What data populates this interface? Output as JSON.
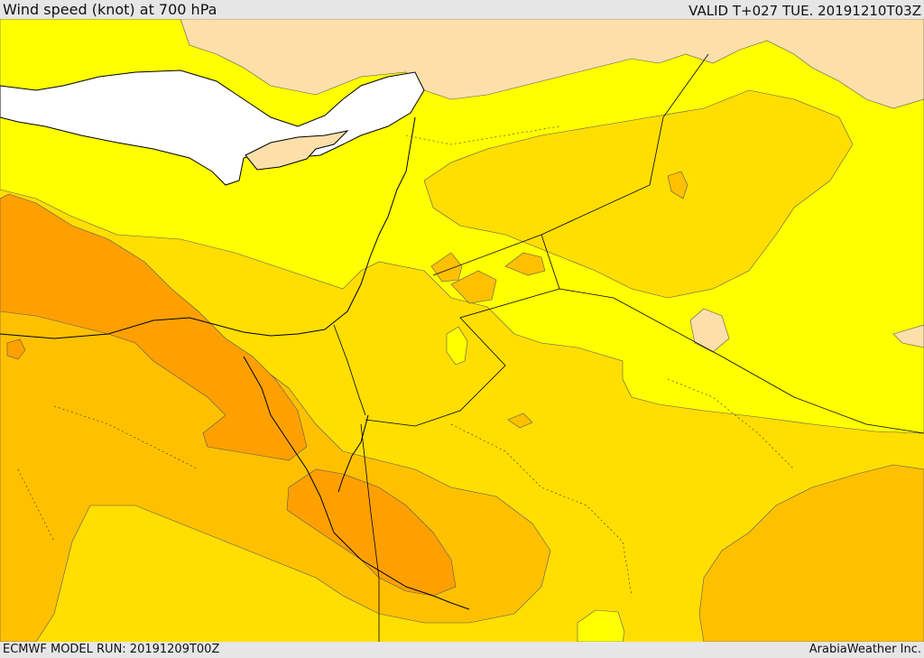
{
  "header": {
    "title": "Wind speed (knot) at 700 hPa",
    "valid": "VALID T+027 TUE. 20191210T03Z"
  },
  "footer": {
    "model_run": "ECMWF MODEL RUN: 20191209T00Z",
    "credit": "ArabiaWeather Inc."
  },
  "map": {
    "palette": {
      "sea": "#ffffff",
      "light": "#fddfaa",
      "yellow": "#ffff00",
      "gold": "#ffde00",
      "amber": "#ffc000",
      "orange": "#ffa000",
      "coast": "#000000",
      "contour": "#5a5a5a"
    }
  }
}
